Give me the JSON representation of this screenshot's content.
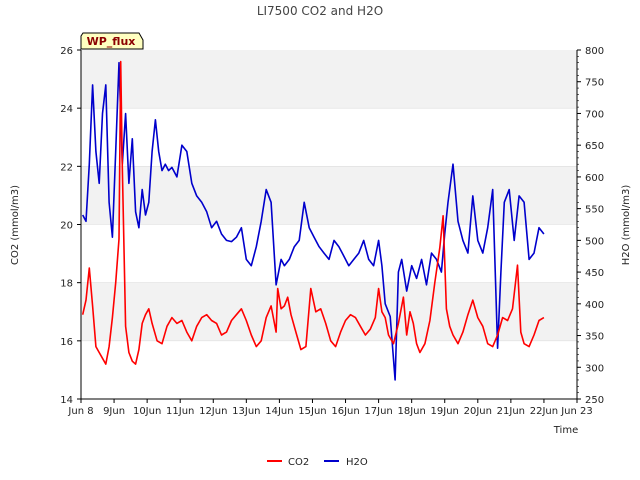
{
  "chart_data": {
    "type": "line",
    "title": "LI7500 CO2 and H2O",
    "badge": "WP_flux",
    "xlabel": "Time",
    "ylabel_left": "CO2 (mmol/m3)",
    "ylabel_right": "H2O (mmol/m3)",
    "xlim": [
      8,
      23
    ],
    "ylim_left": [
      14,
      26
    ],
    "ylim_right": [
      250,
      800
    ],
    "x_ticks": [
      8,
      9,
      10,
      11,
      12,
      13,
      14,
      15,
      16,
      17,
      18,
      19,
      20,
      21,
      22,
      23
    ],
    "x_tick_labels": [
      "Jun 8",
      "9Jun",
      "10Jun",
      "11Jun",
      "12Jun",
      "13Jun",
      "14Jun",
      "15Jun",
      "16Jun",
      "17Jun",
      "18Jun",
      "19Jun",
      "20Jun",
      "21Jun",
      "22Jun",
      "Jun 23"
    ],
    "y_left_ticks": [
      14,
      16,
      18,
      20,
      22,
      24,
      26
    ],
    "y_right_ticks": [
      250,
      300,
      350,
      400,
      450,
      500,
      550,
      600,
      650,
      700,
      750,
      800
    ],
    "grid_bands": true,
    "legend_position": "bottom-center",
    "series": [
      {
        "name": "CO2",
        "color": "#ff0000",
        "axis": "left",
        "x": [
          8.05,
          8.15,
          8.25,
          8.35,
          8.45,
          8.55,
          8.65,
          8.75,
          8.85,
          8.95,
          9.05,
          9.15,
          9.2,
          9.25,
          9.35,
          9.45,
          9.55,
          9.65,
          9.75,
          9.85,
          9.95,
          10.05,
          10.15,
          10.3,
          10.45,
          10.6,
          10.75,
          10.9,
          11.05,
          11.2,
          11.35,
          11.5,
          11.65,
          11.8,
          11.95,
          12.1,
          12.25,
          12.4,
          12.55,
          12.7,
          12.85,
          13.0,
          13.15,
          13.3,
          13.45,
          13.6,
          13.75,
          13.9,
          13.95,
          14.05,
          14.15,
          14.25,
          14.35,
          14.5,
          14.65,
          14.8,
          14.95,
          15.1,
          15.25,
          15.4,
          15.55,
          15.7,
          15.85,
          16.0,
          16.15,
          16.3,
          16.45,
          16.6,
          16.75,
          16.9,
          17.0,
          17.1,
          17.2,
          17.3,
          17.45,
          17.6,
          17.75,
          17.85,
          17.95,
          18.05,
          18.15,
          18.25,
          18.4,
          18.55,
          18.7,
          18.85,
          18.95,
          19.05,
          19.15,
          19.25,
          19.4,
          19.55,
          19.7,
          19.85,
          20.0,
          20.15,
          20.3,
          20.45,
          20.6,
          20.75,
          20.9,
          21.05,
          21.2,
          21.3,
          21.4,
          21.55,
          21.7,
          21.85,
          22.0
        ],
        "values": [
          16.9,
          17.4,
          18.5,
          17.2,
          15.8,
          15.6,
          15.4,
          15.2,
          15.8,
          16.8,
          18.0,
          19.5,
          25.6,
          22.0,
          16.5,
          15.6,
          15.3,
          15.2,
          15.7,
          16.6,
          16.9,
          17.1,
          16.6,
          16.0,
          15.9,
          16.5,
          16.8,
          16.6,
          16.7,
          16.3,
          16.0,
          16.5,
          16.8,
          16.9,
          16.7,
          16.6,
          16.2,
          16.3,
          16.7,
          16.9,
          17.1,
          16.7,
          16.2,
          15.8,
          16.0,
          16.8,
          17.2,
          16.3,
          17.8,
          17.1,
          17.2,
          17.5,
          16.9,
          16.3,
          15.7,
          15.8,
          17.8,
          17.0,
          17.1,
          16.6,
          16.0,
          15.8,
          16.3,
          16.7,
          16.9,
          16.8,
          16.5,
          16.2,
          16.4,
          16.8,
          17.8,
          17.0,
          16.8,
          16.2,
          15.9,
          16.6,
          17.5,
          16.2,
          17.0,
          16.6,
          15.9,
          15.6,
          15.9,
          16.7,
          18.0,
          19.2,
          20.3,
          17.1,
          16.5,
          16.2,
          15.9,
          16.3,
          16.9,
          17.4,
          16.8,
          16.5,
          15.9,
          15.8,
          16.2,
          16.8,
          16.7,
          17.1,
          18.6,
          16.3,
          15.9,
          15.8,
          16.2,
          16.7,
          16.8
        ]
      },
      {
        "name": "H2O",
        "color": "#0000cc",
        "axis": "right",
        "x": [
          8.05,
          8.15,
          8.25,
          8.35,
          8.45,
          8.55,
          8.65,
          8.75,
          8.85,
          8.95,
          9.05,
          9.15,
          9.25,
          9.35,
          9.45,
          9.55,
          9.65,
          9.75,
          9.85,
          9.95,
          10.05,
          10.15,
          10.25,
          10.35,
          10.45,
          10.55,
          10.65,
          10.75,
          10.9,
          11.05,
          11.2,
          11.35,
          11.5,
          11.65,
          11.8,
          11.95,
          12.1,
          12.25,
          12.4,
          12.55,
          12.7,
          12.85,
          13.0,
          13.15,
          13.3,
          13.45,
          13.6,
          13.75,
          13.9,
          14.05,
          14.15,
          14.3,
          14.45,
          14.6,
          14.75,
          14.9,
          15.05,
          15.2,
          15.35,
          15.5,
          15.65,
          15.8,
          15.95,
          16.1,
          16.25,
          16.4,
          16.55,
          16.7,
          16.85,
          17.0,
          17.1,
          17.2,
          17.35,
          17.5,
          17.6,
          17.7,
          17.85,
          18.0,
          18.15,
          18.3,
          18.45,
          18.6,
          18.75,
          18.9,
          19.0,
          19.1,
          19.25,
          19.4,
          19.55,
          19.7,
          19.85,
          20.0,
          20.15,
          20.3,
          20.45,
          20.6,
          20.7,
          20.8,
          20.95,
          21.1,
          21.25,
          21.4,
          21.55,
          21.7,
          21.85,
          22.0
        ],
        "values": [
          540,
          530,
          620,
          745,
          640,
          590,
          700,
          745,
          560,
          505,
          640,
          780,
          620,
          700,
          590,
          660,
          545,
          520,
          580,
          540,
          560,
          640,
          690,
          640,
          610,
          620,
          610,
          615,
          600,
          650,
          640,
          590,
          570,
          560,
          545,
          520,
          530,
          510,
          500,
          498,
          505,
          520,
          470,
          460,
          490,
          530,
          580,
          560,
          430,
          470,
          460,
          470,
          490,
          500,
          560,
          520,
          505,
          490,
          480,
          470,
          500,
          490,
          475,
          460,
          470,
          480,
          500,
          470,
          460,
          500,
          460,
          400,
          380,
          280,
          450,
          470,
          420,
          460,
          440,
          470,
          430,
          480,
          470,
          450,
          510,
          560,
          620,
          530,
          500,
          480,
          570,
          500,
          480,
          520,
          580,
          330,
          450,
          560,
          580,
          500,
          570,
          560,
          470,
          480,
          520,
          510
        ]
      }
    ]
  }
}
